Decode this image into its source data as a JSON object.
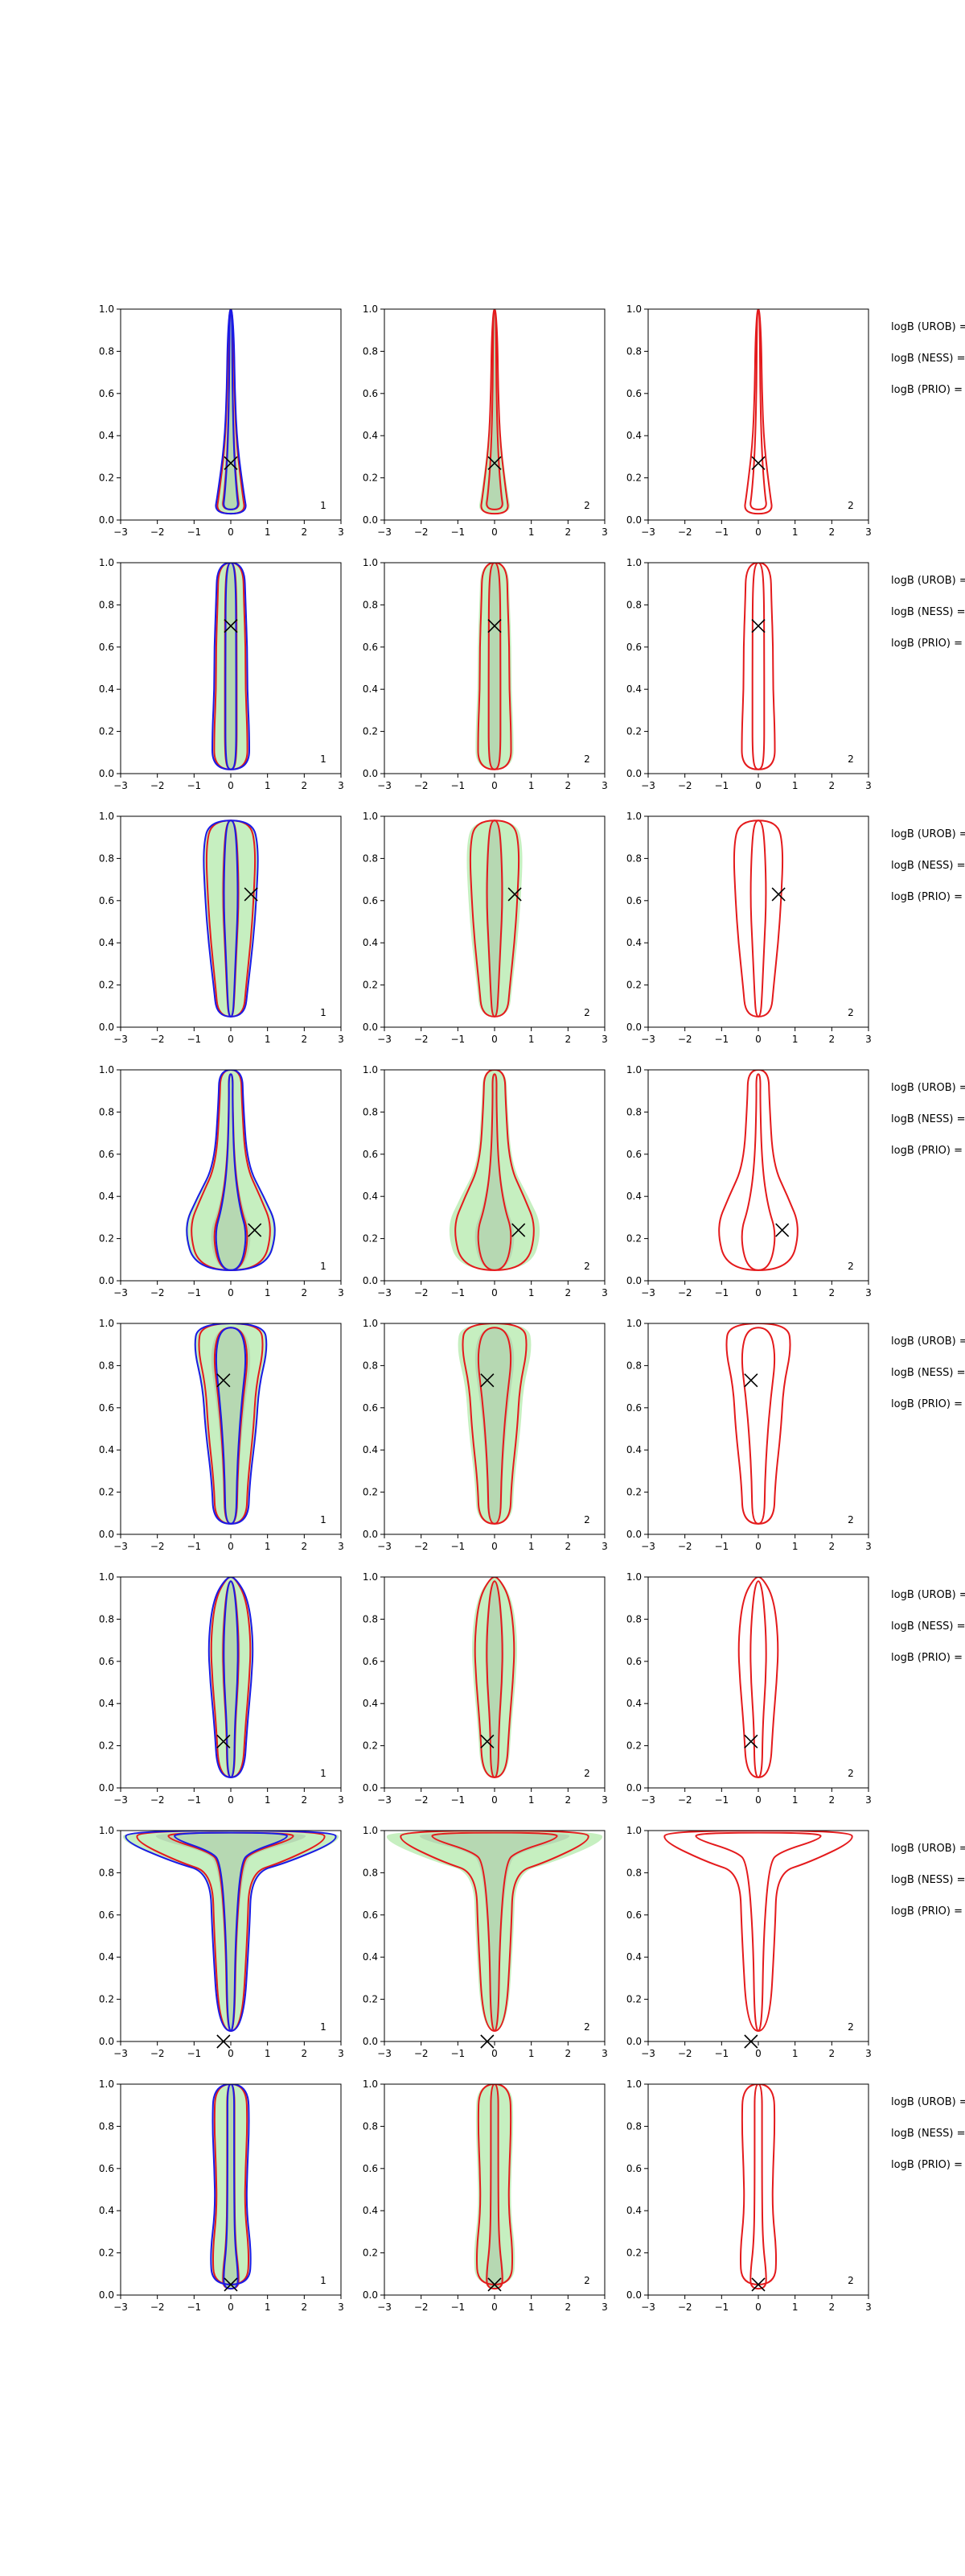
{
  "chart_data": {
    "type": "contour",
    "grid": false,
    "shared_axes": {
      "xlim": [
        -3,
        3
      ],
      "ylim": [
        0,
        1.0
      ],
      "xticks": [
        "−3",
        "−2",
        "−1",
        "0",
        "1",
        "2",
        "3"
      ],
      "yticks": [
        "0.0",
        "0.2",
        "0.4",
        "0.6",
        "0.8",
        "1.0"
      ]
    },
    "row_labels": [
      "logB (UROB) =",
      "logB (NESS) =",
      "logB (PRIO) ="
    ],
    "colors": {
      "filled": "#c6efc0",
      "filled_inner": "#b6d8b2",
      "red": "#e41a1c",
      "blue": "#1a1ae6",
      "marker": "#000000"
    },
    "rows": [
      {
        "marker": [
          0.0,
          0.27
        ],
        "panel_labels": [
          "1",
          "2",
          "2"
        ],
        "profiles": {
          "outer": [
            [
              0.03,
              1.0
            ],
            [
              0.08,
              0.85
            ],
            [
              0.1,
              0.6
            ],
            [
              0.16,
              0.35
            ],
            [
              0.32,
              0.12
            ],
            [
              0.4,
              0.03
            ]
          ],
          "inner": [
            [
              0.02,
              1.0
            ],
            [
              0.04,
              0.9
            ],
            [
              0.05,
              0.6
            ],
            [
              0.1,
              0.3
            ],
            [
              0.18,
              0.12
            ],
            [
              0.24,
              0.05
            ]
          ]
        }
      },
      {
        "marker": [
          0.0,
          0.7
        ],
        "panel_labels": [
          "1",
          "2",
          "2"
        ],
        "profiles": {
          "outer": [
            [
              0.33,
              1.0
            ],
            [
              0.36,
              0.8
            ],
            [
              0.4,
              0.6
            ],
            [
              0.4,
              0.4
            ],
            [
              0.45,
              0.2
            ],
            [
              0.45,
              0.02
            ]
          ],
          "inner": [
            [
              0.08,
              1.0
            ],
            [
              0.15,
              0.9
            ],
            [
              0.16,
              0.6
            ],
            [
              0.16,
              0.3
            ],
            [
              0.16,
              0.1
            ],
            [
              0.1,
              0.02
            ]
          ]
        }
      },
      {
        "marker": [
          0.55,
          0.63
        ],
        "panel_labels": [
          "1",
          "2",
          "2"
        ],
        "profiles": {
          "outer": [
            [
              0.52,
              0.98
            ],
            [
              0.68,
              0.85
            ],
            [
              0.62,
              0.6
            ],
            [
              0.54,
              0.4
            ],
            [
              0.42,
              0.2
            ],
            [
              0.34,
              0.05
            ]
          ],
          "inner": [
            [
              0.1,
              0.98
            ],
            [
              0.18,
              0.86
            ],
            [
              0.22,
              0.6
            ],
            [
              0.15,
              0.35
            ],
            [
              0.1,
              0.15
            ],
            [
              0.06,
              0.05
            ]
          ]
        }
      },
      {
        "marker": [
          0.65,
          0.24
        ],
        "panel_labels": [
          "1",
          "2",
          "2"
        ],
        "profiles": {
          "outer": [
            [
              0.28,
              1.0
            ],
            [
              0.3,
              0.85
            ],
            [
              0.4,
              0.55
            ],
            [
              0.8,
              0.4
            ],
            [
              1.15,
              0.25
            ],
            [
              0.85,
              0.05
            ]
          ],
          "inner": [
            [
              0.06,
              0.98
            ],
            [
              0.05,
              0.85
            ],
            [
              0.1,
              0.55
            ],
            [
              0.26,
              0.35
            ],
            [
              0.5,
              0.22
            ],
            [
              0.3,
              0.05
            ]
          ]
        }
      },
      {
        "marker": [
          -0.2,
          0.73
        ],
        "panel_labels": [
          "1",
          "2",
          "2"
        ],
        "profiles": {
          "outer": [
            [
              0.8,
              1.0
            ],
            [
              0.9,
              0.88
            ],
            [
              0.68,
              0.7
            ],
            [
              0.62,
              0.5
            ],
            [
              0.46,
              0.25
            ],
            [
              0.42,
              0.05
            ]
          ],
          "inner": [
            [
              0.3,
              0.98
            ],
            [
              0.48,
              0.85
            ],
            [
              0.34,
              0.65
            ],
            [
              0.24,
              0.45
            ],
            [
              0.18,
              0.25
            ],
            [
              0.16,
              0.05
            ]
          ]
        }
      },
      {
        "marker": [
          -0.2,
          0.22
        ],
        "panel_labels": [
          "1",
          "2",
          "2"
        ],
        "profiles": {
          "outer": [
            [
              0.1,
              1.0
            ],
            [
              0.42,
              0.9
            ],
            [
              0.55,
              0.7
            ],
            [
              0.5,
              0.5
            ],
            [
              0.4,
              0.3
            ],
            [
              0.32,
              0.05
            ]
          ],
          "inner": [
            [
              0.05,
              0.98
            ],
            [
              0.14,
              0.9
            ],
            [
              0.22,
              0.7
            ],
            [
              0.2,
              0.5
            ],
            [
              0.12,
              0.3
            ],
            [
              0.1,
              0.05
            ]
          ]
        }
      },
      {
        "marker": [
          -0.2,
          0.0
        ],
        "panel_labels": [
          "1",
          "2",
          "2"
        ],
        "profiles": {
          "outer": [
            [
              2.5,
              1.0
            ],
            [
              2.6,
              0.95
            ],
            [
              1.4,
              0.85
            ],
            [
              0.5,
              0.8
            ],
            [
              0.45,
              0.5
            ],
            [
              0.3,
              0.05
            ]
          ],
          "inner": [
            [
              1.7,
              0.99
            ],
            [
              1.7,
              0.96
            ],
            [
              0.6,
              0.9
            ],
            [
              0.3,
              0.85
            ],
            [
              0.14,
              0.5
            ],
            [
              0.1,
              0.05
            ]
          ]
        }
      },
      {
        "marker": [
          0.0,
          0.05
        ],
        "panel_labels": [
          "1",
          "2",
          "2"
        ],
        "profiles": {
          "outer": [
            [
              0.42,
              1.0
            ],
            [
              0.45,
              0.8
            ],
            [
              0.4,
              0.6
            ],
            [
              0.38,
              0.4
            ],
            [
              0.5,
              0.2
            ],
            [
              0.45,
              0.05
            ]
          ],
          "inner": [
            [
              0.1,
              1.0
            ],
            [
              0.1,
              0.8
            ],
            [
              0.1,
              0.5
            ],
            [
              0.12,
              0.25
            ],
            [
              0.22,
              0.1
            ],
            [
              0.2,
              0.03
            ]
          ]
        }
      }
    ]
  }
}
